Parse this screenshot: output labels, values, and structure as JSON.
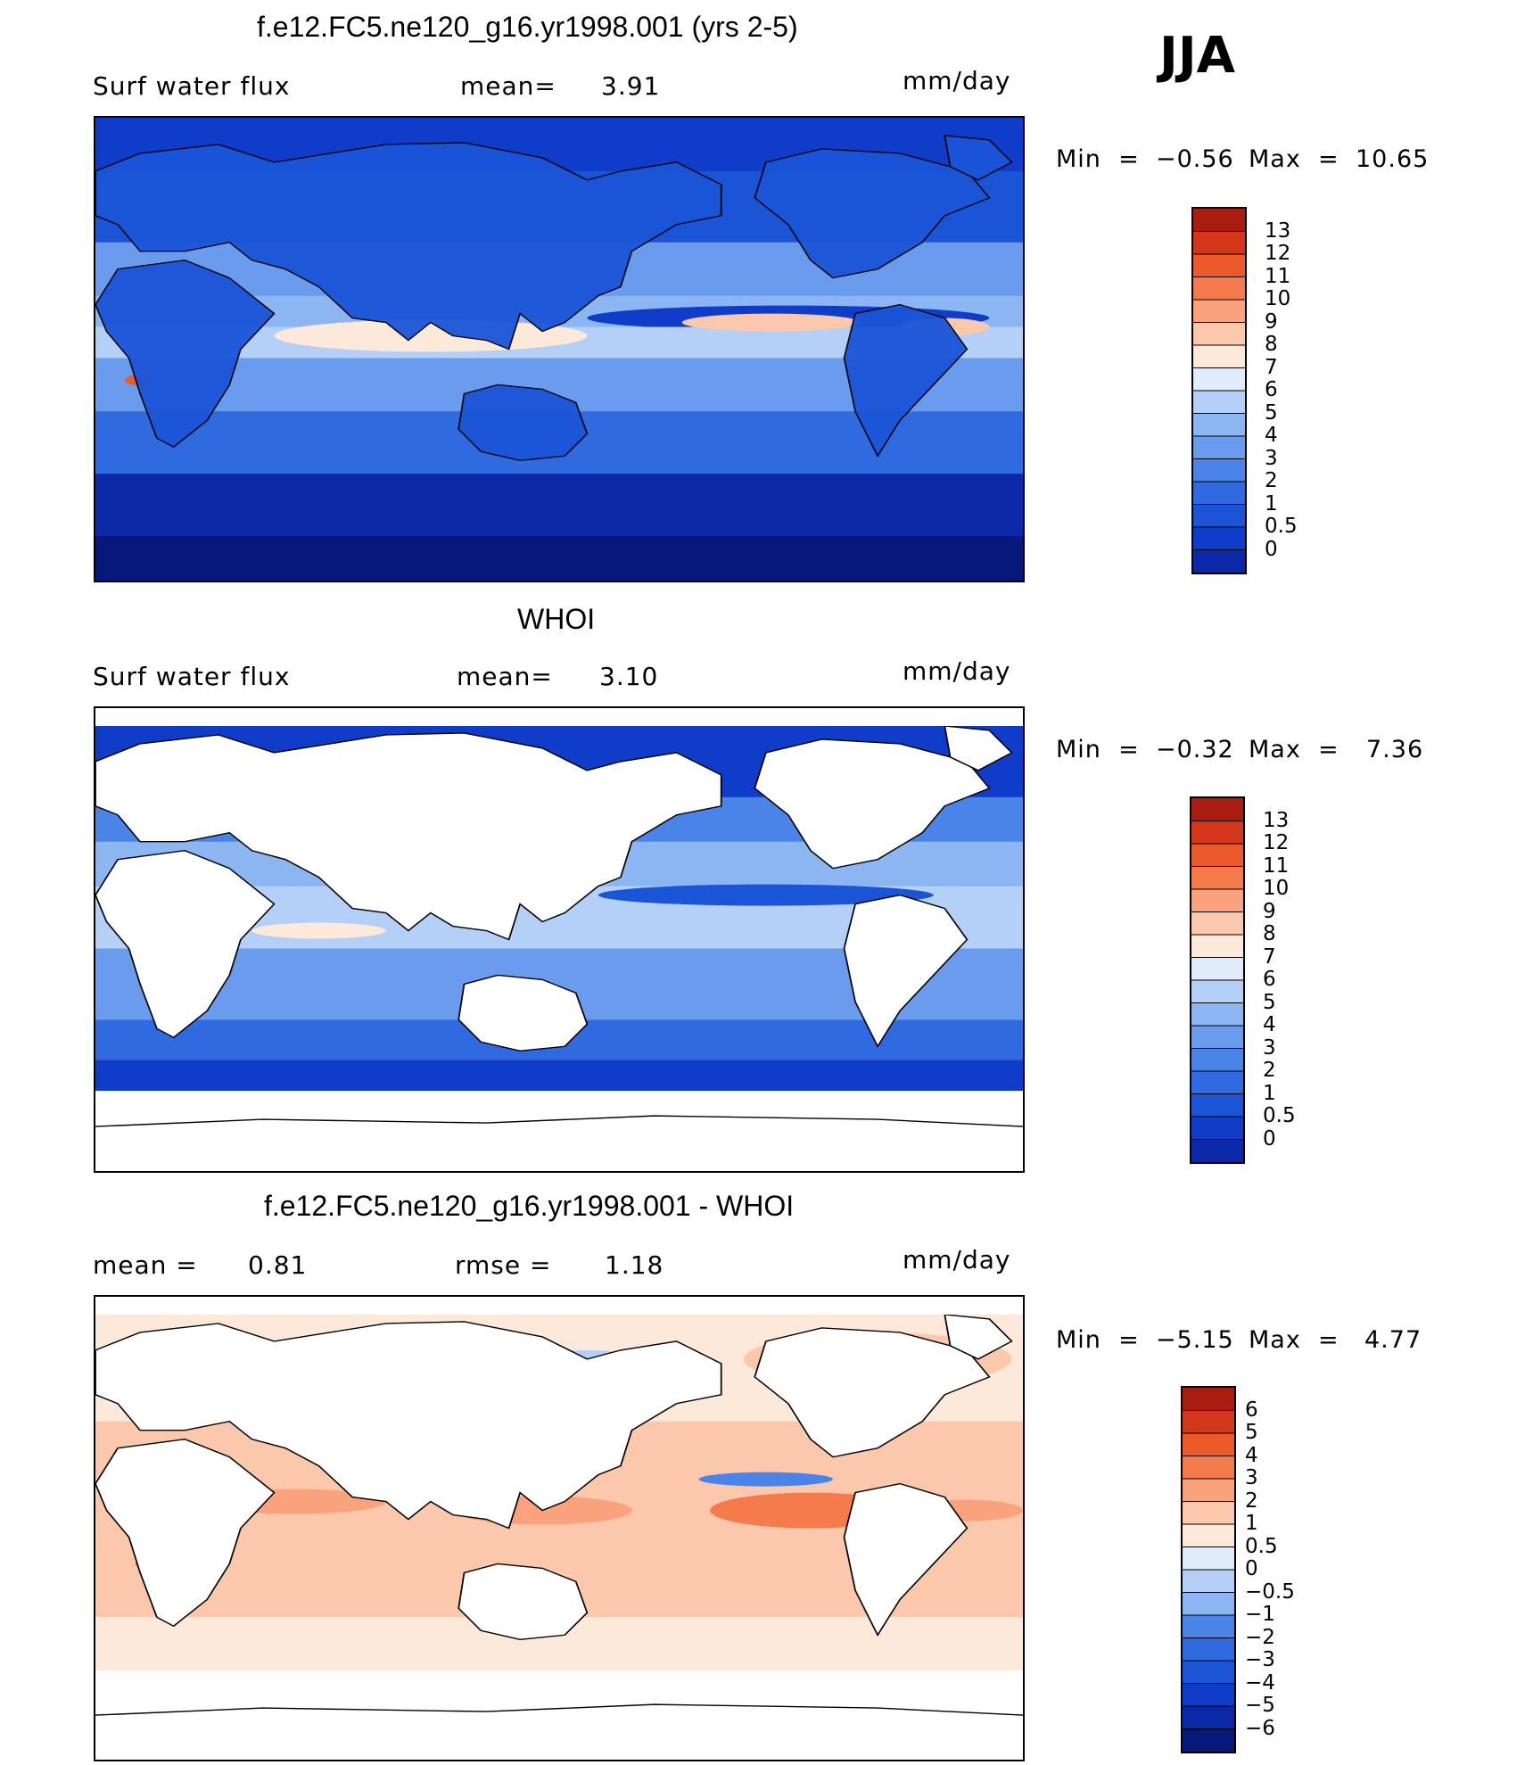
{
  "season": "JJA",
  "colors": {
    "abs": [
      "#08187a",
      "#0a28a8",
      "#0f3cc8",
      "#1a55d8",
      "#2f6ae0",
      "#4a84e8",
      "#6a9cee",
      "#8cb6f2",
      "#b4d0f6",
      "#e0ecfa",
      "#fde9da",
      "#fcc8ac",
      "#f9a27c",
      "#f57b4d",
      "#ec5a2a",
      "#d4361a",
      "#a91d10",
      "#7a0e08"
    ],
    "diff": [
      "#08187a",
      "#0a28a8",
      "#0f3cc8",
      "#1a55d8",
      "#2f6ae0",
      "#4a84e8",
      "#8cb6f2",
      "#b4d0f6",
      "#e0ecfa",
      "#fde9da",
      "#fcc8ac",
      "#f9a27c",
      "#f57b4d",
      "#ec5a2a",
      "#d4361a",
      "#a91d10",
      "#7a0e08"
    ]
  },
  "panels": [
    {
      "title": "f.e12.FC5.ne120_g16.yr1998.001 (yrs 2-5)",
      "left_label": "Surf water flux",
      "mean_label": "mean=",
      "mean_value": "3.91",
      "units": "mm/day",
      "min_label": "Min  =",
      "min_value": "−0.56",
      "max_label": "Max  =",
      "max_value": "10.65",
      "ticks": [
        "13",
        "12",
        "11",
        "10",
        "9",
        "8",
        "7",
        "6",
        "5",
        "4",
        "3",
        "2",
        "1",
        "0.5",
        "0"
      ]
    },
    {
      "title": "WHOI",
      "left_label": "Surf water flux",
      "mean_label": "mean=",
      "mean_value": "3.10",
      "units": "mm/day",
      "min_label": "Min  =",
      "min_value": "−0.32",
      "max_label": "Max  =",
      "max_value": "7.36",
      "ticks": [
        "13",
        "12",
        "11",
        "10",
        "9",
        "8",
        "7",
        "6",
        "5",
        "4",
        "3",
        "2",
        "1",
        "0.5",
        "0"
      ]
    },
    {
      "title": "f.e12.FC5.ne120_g16.yr1998.001 - WHOI",
      "left_label": "mean  =",
      "mean_value": "0.81",
      "rmse_label": "rmse  =",
      "rmse_value": "1.18",
      "units": "mm/day",
      "min_label": "Min  =",
      "min_value": "−5.15",
      "max_label": "Max  =",
      "max_value": "4.77",
      "ticks": [
        "6",
        "5",
        "4",
        "3",
        "2",
        "1",
        "0.5",
        "0",
        "−0.5",
        "−1",
        "−2",
        "−3",
        "−4",
        "−5",
        "−6"
      ]
    }
  ]
}
